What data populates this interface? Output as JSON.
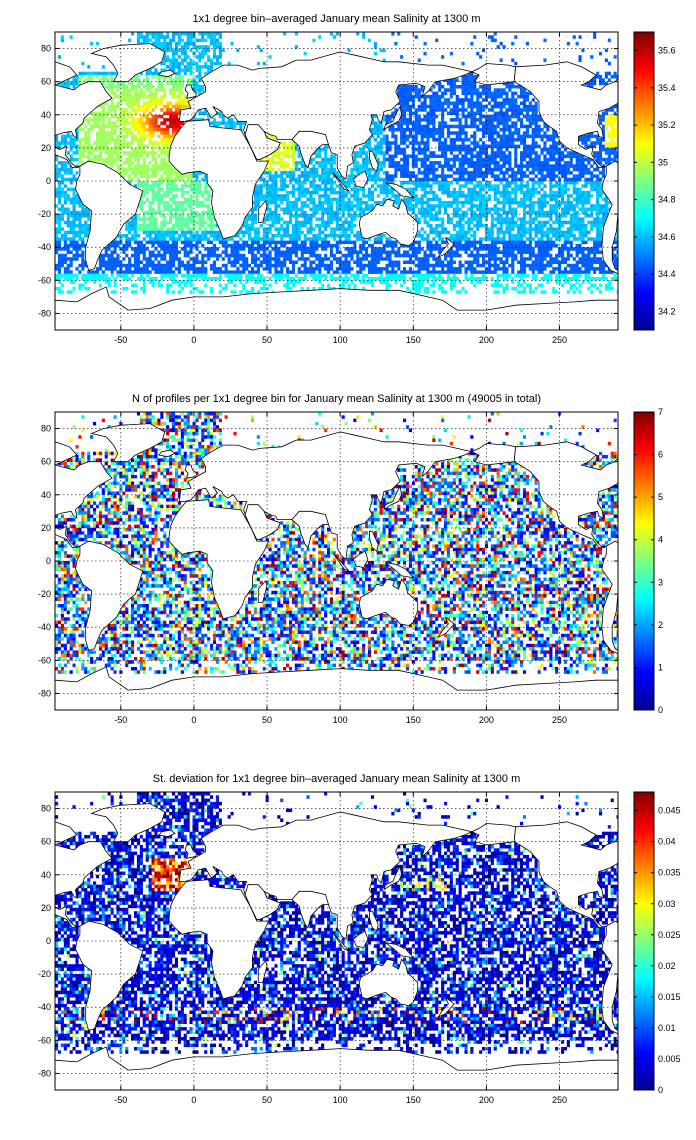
{
  "chart_data": [
    {
      "type": "heatmap",
      "title": "1x1 degree bin–averaged January mean Salinity at 1300 m",
      "xlim": [
        -95,
        290
      ],
      "ylim": [
        -90,
        90
      ],
      "xticks": [
        -50,
        0,
        50,
        100,
        150,
        200,
        250
      ],
      "yticks": [
        80,
        60,
        40,
        20,
        0,
        -20,
        -40,
        -60,
        -80
      ],
      "grid": true,
      "colorbar": {
        "range": [
          34.1,
          35.7
        ],
        "ticks": [
          35.6,
          35.4,
          35.2,
          35,
          34.8,
          34.6,
          34.4,
          34.2
        ],
        "tick_labels": [
          "35.6",
          "35.4",
          "35.2",
          "35",
          "34.8",
          "34.6",
          "34.4",
          "34.2"
        ]
      },
      "field_description_values": {
        "mediterranean_outflow_max": 35.6,
        "north_atlantic_typical": 35.0,
        "north_pacific_typical": 34.5,
        "southern_ocean_typical": 34.7
      }
    },
    {
      "type": "heatmap",
      "title": "N of profiles per 1x1 degree bin for January mean Salinity at 1300 m (49005 in total)",
      "xlim": [
        -95,
        290
      ],
      "ylim": [
        -90,
        90
      ],
      "xticks": [
        -50,
        0,
        50,
        100,
        150,
        200,
        250
      ],
      "yticks": [
        80,
        60,
        40,
        20,
        0,
        -20,
        -40,
        -60,
        -80
      ],
      "grid": true,
      "colorbar": {
        "range": [
          0,
          7
        ],
        "ticks": [
          7,
          6,
          5,
          4,
          3,
          2,
          1,
          0
        ],
        "tick_labels": [
          "7",
          "6",
          "5",
          "4",
          "3",
          "2",
          "1",
          "0"
        ]
      }
    },
    {
      "type": "heatmap",
      "title": "St. deviation for 1x1 degree bin–averaged January mean Salinity at 1300 m",
      "xlim": [
        -95,
        290
      ],
      "ylim": [
        -90,
        90
      ],
      "xticks": [
        -50,
        0,
        50,
        100,
        150,
        200,
        250
      ],
      "yticks": [
        80,
        60,
        40,
        20,
        0,
        -20,
        -40,
        -60,
        -80
      ],
      "grid": true,
      "colorbar": {
        "range": [
          0,
          0.048
        ],
        "ticks": [
          0.045,
          0.04,
          0.035,
          0.03,
          0.025,
          0.02,
          0.015,
          0.01,
          0.005,
          0
        ],
        "tick_labels": [
          "0.045",
          "0.04",
          "0.035",
          "0.03",
          "0.025",
          "0.02",
          "0.015",
          "0.01",
          "0.005",
          "0"
        ]
      }
    }
  ]
}
